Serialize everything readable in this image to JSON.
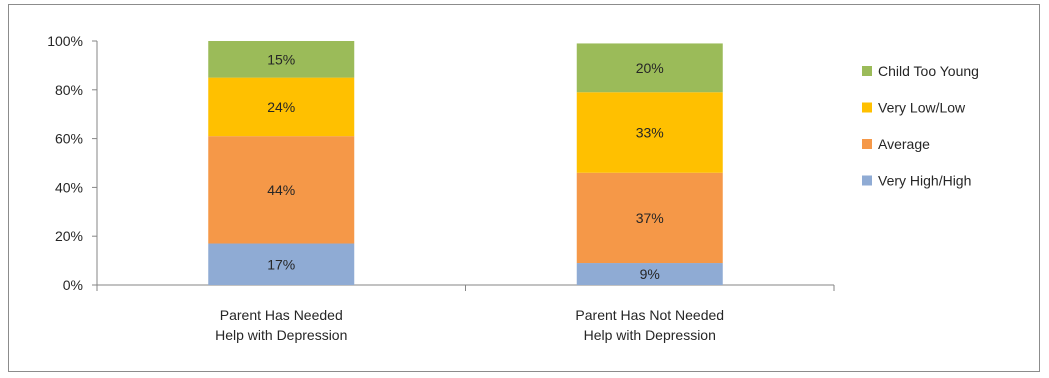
{
  "chart_data": {
    "type": "bar",
    "stacked": true,
    "categories": [
      [
        "Parent Has Needed",
        "Help with Depression"
      ],
      [
        "Parent Has Not Needed",
        "Help with Depression"
      ]
    ],
    "series": [
      {
        "name": "Very High/High",
        "color": "#8fabd4",
        "values": [
          17,
          9
        ],
        "labels": [
          "17%",
          "9%"
        ]
      },
      {
        "name": "Average",
        "color": "#f59848",
        "values": [
          44,
          37
        ],
        "labels": [
          "44%",
          "37%"
        ]
      },
      {
        "name": "Very Low/Low",
        "color": "#ffc000",
        "values": [
          24,
          33
        ],
        "labels": [
          "24%",
          "33%"
        ]
      },
      {
        "name": "Child Too Young",
        "color": "#9bbb59",
        "values": [
          15,
          20
        ],
        "labels": [
          "15%",
          "20%"
        ]
      }
    ],
    "ylim": [
      0,
      100
    ],
    "yticks": [
      0,
      20,
      40,
      60,
      80,
      100
    ],
    "ytick_labels": [
      "0%",
      "20%",
      "40%",
      "60%",
      "80%",
      "100%"
    ],
    "grid": false,
    "legend_position": "right",
    "legend_order": [
      "Child Too Young",
      "Very Low/Low",
      "Average",
      "Very High/High"
    ],
    "title": "",
    "xlabel": "",
    "ylabel": ""
  }
}
